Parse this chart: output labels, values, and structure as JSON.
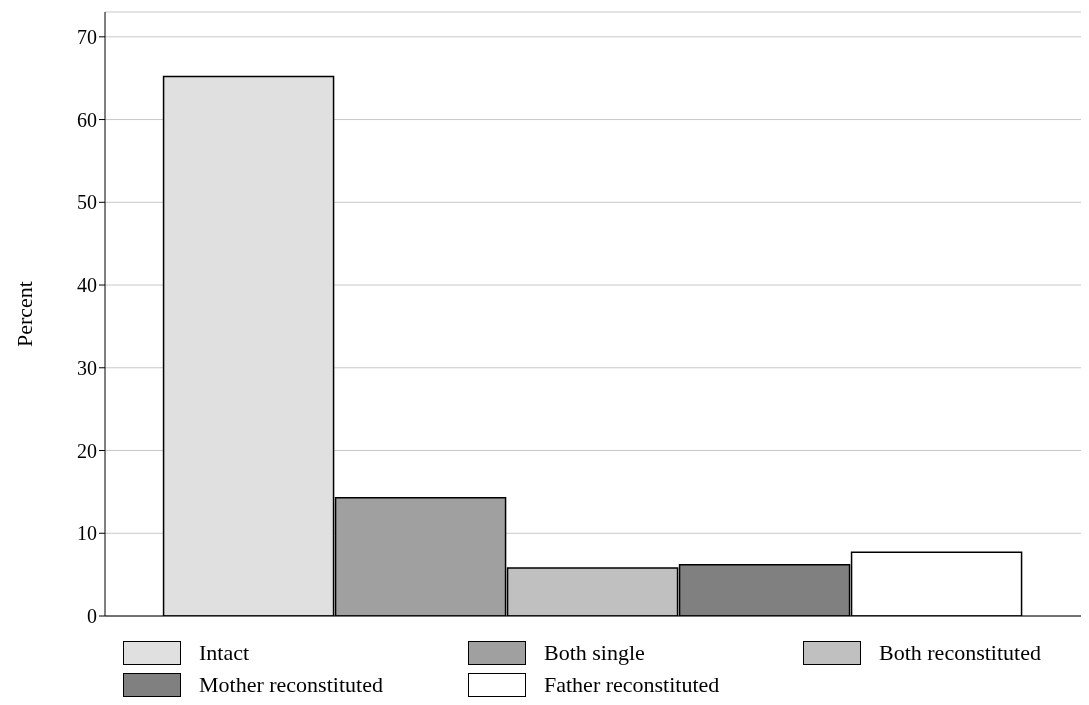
{
  "chart_data": {
    "type": "bar",
    "ylabel": "Percent",
    "categories": [
      null
    ],
    "series": [
      {
        "name": "Intact",
        "color": "#e0e0e0",
        "values": [
          65.2
        ]
      },
      {
        "name": "Both single",
        "color": "#a0a0a0",
        "values": [
          14.3
        ]
      },
      {
        "name": "Both reconstituted",
        "color": "#c0c0c0",
        "values": [
          5.8
        ]
      },
      {
        "name": "Mother reconstituted",
        "color": "#808080",
        "values": [
          6.2
        ]
      },
      {
        "name": "Father reconstituted",
        "color": "#ffffff",
        "values": [
          7.7
        ]
      }
    ],
    "ylim": [
      0,
      73
    ],
    "yticks": [
      0,
      10,
      20,
      30,
      40,
      50,
      60,
      70
    ],
    "grid": "y",
    "legend": "bottom"
  }
}
